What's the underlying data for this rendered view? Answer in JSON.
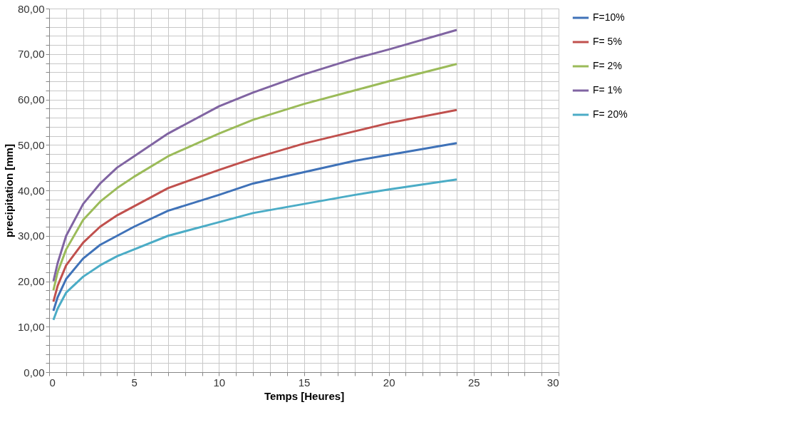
{
  "chart_data": {
    "type": "line",
    "xlabel": "Temps [Heures]",
    "ylabel": "precipitation [mm]",
    "x": [
      0.25,
      0.5,
      1,
      2,
      3,
      4,
      5,
      7,
      10,
      12,
      15,
      18,
      20,
      24
    ],
    "series": [
      {
        "name": "F=10%",
        "color": "#3f72b8",
        "values": [
          13.5,
          16.5,
          20.5,
          25,
          28,
          30,
          32,
          35.5,
          39,
          41.5,
          44,
          46.5,
          47.8,
          50.4
        ]
      },
      {
        "name": "F= 5%",
        "color": "#c0504d",
        "values": [
          15.5,
          19,
          23.5,
          28.5,
          32,
          34.5,
          36.5,
          40.5,
          44.5,
          47,
          50.3,
          53,
          54.8,
          57.7
        ]
      },
      {
        "name": "F= 2%",
        "color": "#9bbb59",
        "values": [
          18,
          22,
          27,
          33.5,
          37.5,
          40.5,
          43,
          47.5,
          52.5,
          55.5,
          59,
          62,
          64,
          67.8
        ]
      },
      {
        "name": "F= 1%",
        "color": "#8064a2",
        "values": [
          20,
          24,
          30,
          37,
          41.5,
          45,
          47.5,
          52.5,
          58.5,
          61.5,
          65.5,
          69,
          71,
          75.3
        ]
      },
      {
        "name": "F= 20%",
        "color": "#4bacc6",
        "values": [
          11.5,
          14,
          17.5,
          21,
          23.5,
          25.5,
          27,
          30,
          33,
          35,
          37,
          39,
          40.2,
          42.4
        ]
      }
    ],
    "xlim": [
      0,
      30
    ],
    "xticks": [
      0,
      {
        "value": 1,
        "label": null
      },
      {
        "value": 2,
        "label": null
      },
      {
        "value": 3,
        "label": null
      },
      {
        "value": 4,
        "label": null
      },
      5,
      {
        "value": 6,
        "label": null
      },
      {
        "value": 7,
        "label": null
      },
      {
        "value": 8,
        "label": null
      },
      {
        "value": 9,
        "label": null
      },
      10,
      {
        "value": 11,
        "label": null
      },
      {
        "value": 12,
        "label": null
      },
      {
        "value": 13,
        "label": null
      },
      {
        "value": 14,
        "label": null
      },
      15,
      {
        "value": 16,
        "label": null
      },
      {
        "value": 17,
        "label": null
      },
      {
        "value": 18,
        "label": null
      },
      {
        "value": 19,
        "label": null
      },
      20,
      {
        "value": 21,
        "label": null
      },
      {
        "value": 22,
        "label": null
      },
      {
        "value": 23,
        "label": null
      },
      {
        "value": 24,
        "label": null
      },
      25,
      {
        "value": 26,
        "label": null
      },
      {
        "value": 27,
        "label": null
      },
      {
        "value": 28,
        "label": null
      },
      {
        "value": 29,
        "label": null
      },
      30
    ],
    "ylim": [
      0,
      80
    ],
    "yticks": [
      {
        "value": 0,
        "label": "0,00"
      },
      {
        "value": 2,
        "label": null
      },
      {
        "value": 4,
        "label": null
      },
      {
        "value": 6,
        "label": null
      },
      {
        "value": 8,
        "label": null
      },
      {
        "value": 10,
        "label": "10,00"
      },
      {
        "value": 12,
        "label": null
      },
      {
        "value": 14,
        "label": null
      },
      {
        "value": 16,
        "label": null
      },
      {
        "value": 18,
        "label": null
      },
      {
        "value": 20,
        "label": "20,00"
      },
      {
        "value": 22,
        "label": null
      },
      {
        "value": 24,
        "label": null
      },
      {
        "value": 26,
        "label": null
      },
      {
        "value": 28,
        "label": null
      },
      {
        "value": 30,
        "label": "30,00"
      },
      {
        "value": 32,
        "label": null
      },
      {
        "value": 34,
        "label": null
      },
      {
        "value": 36,
        "label": null
      },
      {
        "value": 38,
        "label": null
      },
      {
        "value": 40,
        "label": "40,00"
      },
      {
        "value": 42,
        "label": null
      },
      {
        "value": 44,
        "label": null
      },
      {
        "value": 46,
        "label": null
      },
      {
        "value": 48,
        "label": null
      },
      {
        "value": 50,
        "label": "50,00"
      },
      {
        "value": 52,
        "label": null
      },
      {
        "value": 54,
        "label": null
      },
      {
        "value": 56,
        "label": null
      },
      {
        "value": 58,
        "label": null
      },
      {
        "value": 60,
        "label": "60,00"
      },
      {
        "value": 62,
        "label": null
      },
      {
        "value": 64,
        "label": null
      },
      {
        "value": 66,
        "label": null
      },
      {
        "value": 68,
        "label": null
      },
      {
        "value": 70,
        "label": "70,00"
      },
      {
        "value": 72,
        "label": null
      },
      {
        "value": 74,
        "label": null
      },
      {
        "value": 76,
        "label": null
      },
      {
        "value": 78,
        "label": null
      },
      {
        "value": 80,
        "label": "80,00"
      }
    ],
    "grid": true,
    "legend": "right",
    "line_style": "solid"
  }
}
